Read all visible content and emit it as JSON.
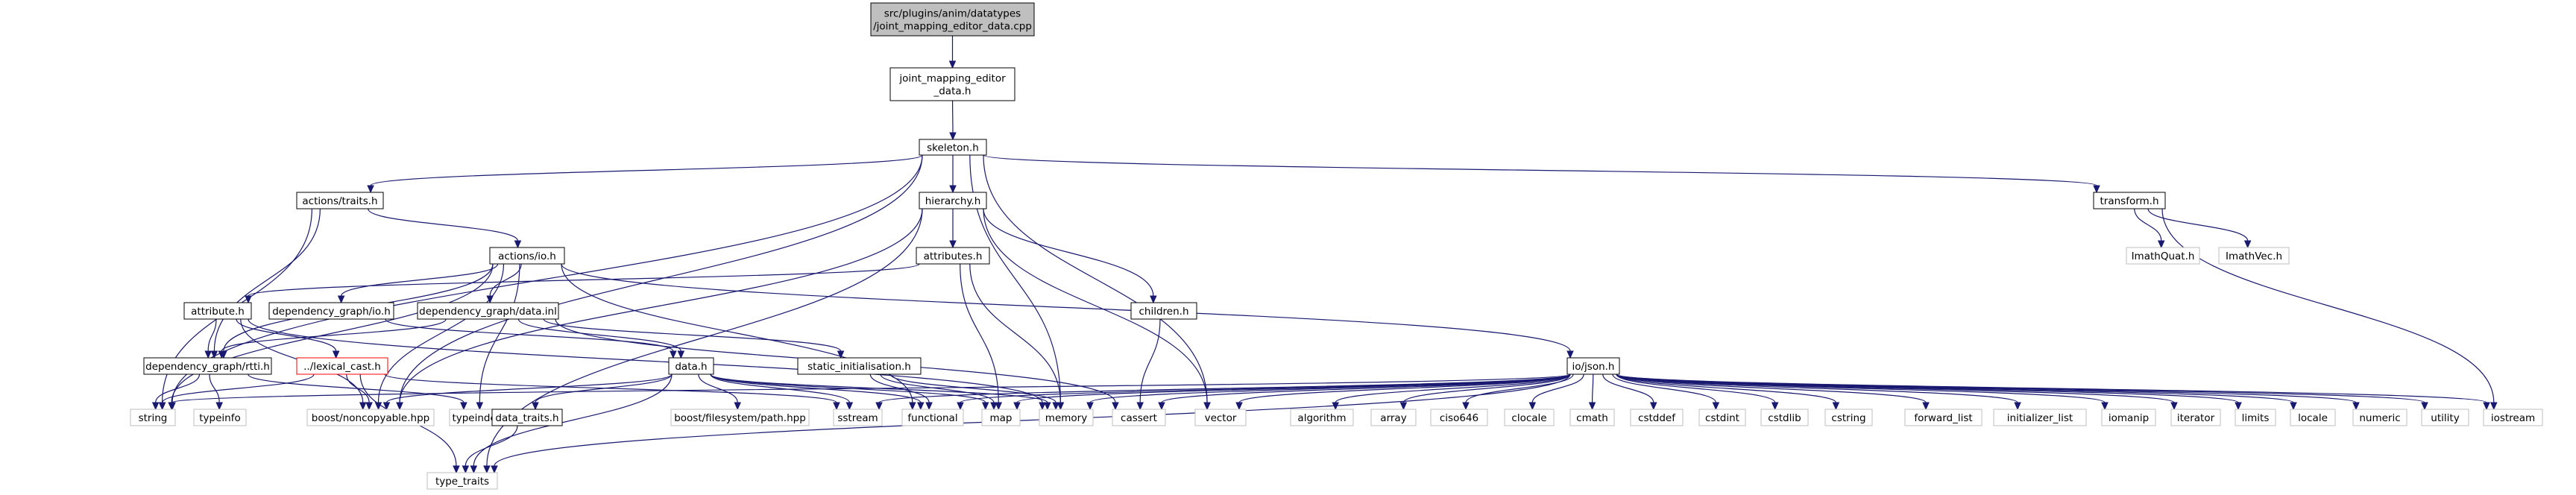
{
  "nodes": [
    {
      "id": "root",
      "lines": [
        "src/plugins/anim/datatypes",
        "/joint_mapping_editor_data.cpp"
      ],
      "kind": "root"
    },
    {
      "id": "jmed_h",
      "lines": [
        "joint_mapping_editor",
        "_data.h"
      ],
      "kind": "local"
    },
    {
      "id": "skeleton_h",
      "lines": [
        "skeleton.h"
      ],
      "kind": "local"
    },
    {
      "id": "actions_traits_h",
      "lines": [
        "actions/traits.h"
      ],
      "kind": "local"
    },
    {
      "id": "hierarchy_h",
      "lines": [
        "hierarchy.h"
      ],
      "kind": "local"
    },
    {
      "id": "transform_h",
      "lines": [
        "transform.h"
      ],
      "kind": "local"
    },
    {
      "id": "actions_io_h",
      "lines": [
        "actions/io.h"
      ],
      "kind": "local"
    },
    {
      "id": "attributes_h",
      "lines": [
        "attributes.h"
      ],
      "kind": "local"
    },
    {
      "id": "imathquat_h",
      "lines": [
        "ImathQuat.h"
      ],
      "kind": "system"
    },
    {
      "id": "imathvec_h",
      "lines": [
        "ImathVec.h"
      ],
      "kind": "system"
    },
    {
      "id": "attribute_h",
      "lines": [
        "attribute.h"
      ],
      "kind": "local"
    },
    {
      "id": "dg_io_h",
      "lines": [
        "dependency_graph/io.h"
      ],
      "kind": "local"
    },
    {
      "id": "dg_data_inl",
      "lines": [
        "dependency_graph/data.inl"
      ],
      "kind": "local"
    },
    {
      "id": "children_h",
      "lines": [
        "children.h"
      ],
      "kind": "local"
    },
    {
      "id": "dg_rtti_h",
      "lines": [
        "dependency_graph/rtti.h"
      ],
      "kind": "local"
    },
    {
      "id": "lexical_cast_h",
      "lines": [
        "../lexical_cast.h"
      ],
      "kind": "missing"
    },
    {
      "id": "data_h",
      "lines": [
        "data.h"
      ],
      "kind": "local"
    },
    {
      "id": "static_init_h",
      "lines": [
        "static_initialisation.h"
      ],
      "kind": "local"
    },
    {
      "id": "io_json_h",
      "lines": [
        "io/json.h"
      ],
      "kind": "local"
    },
    {
      "id": "string",
      "lines": [
        "string"
      ],
      "kind": "system"
    },
    {
      "id": "typeinfo",
      "lines": [
        "typeinfo"
      ],
      "kind": "system"
    },
    {
      "id": "boost_noncopyable",
      "lines": [
        "boost/noncopyable.hpp"
      ],
      "kind": "system"
    },
    {
      "id": "typeindex",
      "lines": [
        "typeindex"
      ],
      "kind": "system"
    },
    {
      "id": "data_traits_h",
      "lines": [
        "data_traits.h"
      ],
      "kind": "local"
    },
    {
      "id": "boost_fs_path",
      "lines": [
        "boost/filesystem/path.hpp"
      ],
      "kind": "system"
    },
    {
      "id": "sstream",
      "lines": [
        "sstream"
      ],
      "kind": "system"
    },
    {
      "id": "functional",
      "lines": [
        "functional"
      ],
      "kind": "system"
    },
    {
      "id": "map",
      "lines": [
        "map"
      ],
      "kind": "system"
    },
    {
      "id": "memory",
      "lines": [
        "memory"
      ],
      "kind": "system"
    },
    {
      "id": "cassert",
      "lines": [
        "cassert"
      ],
      "kind": "system"
    },
    {
      "id": "vector",
      "lines": [
        "vector"
      ],
      "kind": "system"
    },
    {
      "id": "algorithm",
      "lines": [
        "algorithm"
      ],
      "kind": "system"
    },
    {
      "id": "array",
      "lines": [
        "array"
      ],
      "kind": "system"
    },
    {
      "id": "ciso646",
      "lines": [
        "ciso646"
      ],
      "kind": "system"
    },
    {
      "id": "clocale",
      "lines": [
        "clocale"
      ],
      "kind": "system"
    },
    {
      "id": "cmath",
      "lines": [
        "cmath"
      ],
      "kind": "system"
    },
    {
      "id": "cstddef",
      "lines": [
        "cstddef"
      ],
      "kind": "system"
    },
    {
      "id": "cstdint",
      "lines": [
        "cstdint"
      ],
      "kind": "system"
    },
    {
      "id": "cstdlib",
      "lines": [
        "cstdlib"
      ],
      "kind": "system"
    },
    {
      "id": "cstring",
      "lines": [
        "cstring"
      ],
      "kind": "system"
    },
    {
      "id": "forward_list",
      "lines": [
        "forward_list"
      ],
      "kind": "system"
    },
    {
      "id": "initializer_list",
      "lines": [
        "initializer_list"
      ],
      "kind": "system"
    },
    {
      "id": "iomanip",
      "lines": [
        "iomanip"
      ],
      "kind": "system"
    },
    {
      "id": "iterator",
      "lines": [
        "iterator"
      ],
      "kind": "system"
    },
    {
      "id": "limits",
      "lines": [
        "limits"
      ],
      "kind": "system"
    },
    {
      "id": "locale",
      "lines": [
        "locale"
      ],
      "kind": "system"
    },
    {
      "id": "numeric",
      "lines": [
        "numeric"
      ],
      "kind": "system"
    },
    {
      "id": "utility",
      "lines": [
        "utility"
      ],
      "kind": "system"
    },
    {
      "id": "iostream",
      "lines": [
        "iostream"
      ],
      "kind": "system"
    },
    {
      "id": "type_traits",
      "lines": [
        "type_traits"
      ],
      "kind": "system"
    }
  ],
  "edges": [
    [
      "root",
      "jmed_h"
    ],
    [
      "jmed_h",
      "skeleton_h"
    ],
    [
      "skeleton_h",
      "actions_traits_h"
    ],
    [
      "skeleton_h",
      "hierarchy_h"
    ],
    [
      "skeleton_h",
      "transform_h"
    ],
    [
      "skeleton_h",
      "string"
    ],
    [
      "skeleton_h",
      "boost_noncopyable"
    ],
    [
      "skeleton_h",
      "memory"
    ],
    [
      "skeleton_h",
      "vector"
    ],
    [
      "actions_traits_h",
      "actions_io_h"
    ],
    [
      "actions_traits_h",
      "dg_rtti_h"
    ],
    [
      "actions_traits_h",
      "string"
    ],
    [
      "hierarchy_h",
      "attributes_h"
    ],
    [
      "hierarchy_h",
      "children_h"
    ],
    [
      "hierarchy_h",
      "boost_noncopyable"
    ],
    [
      "hierarchy_h",
      "vector"
    ],
    [
      "hierarchy_h",
      "type_traits"
    ],
    [
      "transform_h",
      "imathquat_h"
    ],
    [
      "transform_h",
      "imathvec_h"
    ],
    [
      "transform_h",
      "iostream"
    ],
    [
      "actions_io_h",
      "dg_io_h"
    ],
    [
      "actions_io_h",
      "dg_data_inl"
    ],
    [
      "actions_io_h",
      "io_json_h"
    ],
    [
      "actions_io_h",
      "dg_rtti_h"
    ],
    [
      "actions_io_h",
      "boost_noncopyable"
    ],
    [
      "actions_io_h",
      "functional"
    ],
    [
      "actions_io_h",
      "typeindex"
    ],
    [
      "actions_io_h",
      "string"
    ],
    [
      "attributes_h",
      "attribute_h"
    ],
    [
      "attributes_h",
      "map"
    ],
    [
      "attributes_h",
      "memory"
    ],
    [
      "attribute_h",
      "dg_rtti_h"
    ],
    [
      "attribute_h",
      "lexical_cast_h"
    ],
    [
      "attribute_h",
      "boost_noncopyable"
    ],
    [
      "attribute_h",
      "memory"
    ],
    [
      "dg_io_h",
      "data_h"
    ],
    [
      "dg_data_inl",
      "data_h"
    ],
    [
      "dg_data_inl",
      "static_init_h"
    ],
    [
      "dg_data_inl",
      "dg_rtti_h"
    ],
    [
      "dg_data_inl",
      "cassert"
    ],
    [
      "children_h",
      "cassert"
    ],
    [
      "dg_rtti_h",
      "string"
    ],
    [
      "dg_rtti_h",
      "typeinfo"
    ],
    [
      "dg_rtti_h",
      "typeindex"
    ],
    [
      "lexical_cast_h",
      "string"
    ],
    [
      "lexical_cast_h",
      "type_traits"
    ],
    [
      "lexical_cast_h",
      "boost_noncopyable"
    ],
    [
      "lexical_cast_h",
      "sstream"
    ],
    [
      "data_h",
      "boost_noncopyable"
    ],
    [
      "data_h",
      "data_traits_h"
    ],
    [
      "data_h",
      "boost_fs_path"
    ],
    [
      "data_h",
      "functional"
    ],
    [
      "data_h",
      "map"
    ],
    [
      "data_h",
      "memory"
    ],
    [
      "data_h",
      "sstream"
    ],
    [
      "data_h",
      "type_traits"
    ],
    [
      "data_traits_h",
      "type_traits"
    ],
    [
      "static_init_h",
      "functional"
    ],
    [
      "static_init_h",
      "map"
    ],
    [
      "static_init_h",
      "memory"
    ],
    [
      "io_json_h",
      "string"
    ],
    [
      "io_json_h",
      "sstream"
    ],
    [
      "io_json_h",
      "functional"
    ],
    [
      "io_json_h",
      "map"
    ],
    [
      "io_json_h",
      "memory"
    ],
    [
      "io_json_h",
      "cassert"
    ],
    [
      "io_json_h",
      "vector"
    ],
    [
      "io_json_h",
      "type_traits"
    ],
    [
      "io_json_h",
      "algorithm"
    ],
    [
      "io_json_h",
      "array"
    ],
    [
      "io_json_h",
      "ciso646"
    ],
    [
      "io_json_h",
      "clocale"
    ],
    [
      "io_json_h",
      "cmath"
    ],
    [
      "io_json_h",
      "cstddef"
    ],
    [
      "io_json_h",
      "cstdint"
    ],
    [
      "io_json_h",
      "cstdlib"
    ],
    [
      "io_json_h",
      "cstring"
    ],
    [
      "io_json_h",
      "forward_list"
    ],
    [
      "io_json_h",
      "initializer_list"
    ],
    [
      "io_json_h",
      "iomanip"
    ],
    [
      "io_json_h",
      "iterator"
    ],
    [
      "io_json_h",
      "limits"
    ],
    [
      "io_json_h",
      "locale"
    ],
    [
      "io_json_h",
      "numeric"
    ],
    [
      "io_json_h",
      "utility"
    ],
    [
      "io_json_h",
      "iostream"
    ]
  ],
  "colors": {
    "edge": "#191970",
    "local_border": "#000000",
    "system_border": "#bfbfbf",
    "missing_border": "#ff0000",
    "root_fill": "#bfbfbf"
  }
}
